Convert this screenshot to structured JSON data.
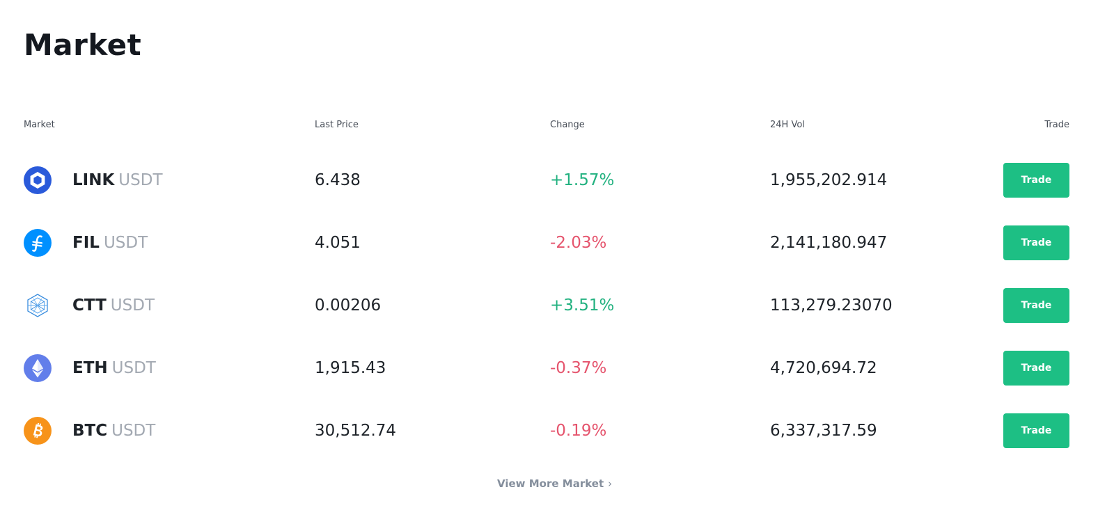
{
  "page": {
    "title": "Market"
  },
  "table": {
    "headers": {
      "market": "Market",
      "last_price": "Last Price",
      "change": "Change",
      "volume": "24H Vol",
      "trade": "Trade"
    },
    "rows": [
      {
        "base": "LINK",
        "quote": "USDT",
        "price": "6.438",
        "change": "+1.57%",
        "direction": "up",
        "volume": "1,955,202.914",
        "trade_label": "Trade",
        "icon": "chainlink-icon"
      },
      {
        "base": "FIL",
        "quote": "USDT",
        "price": "4.051",
        "change": "-2.03%",
        "direction": "down",
        "volume": "2,141,180.947",
        "trade_label": "Trade",
        "icon": "filecoin-icon"
      },
      {
        "base": "CTT",
        "quote": "USDT",
        "price": "0.00206",
        "change": "+3.51%",
        "direction": "up",
        "volume": "113,279.23070",
        "trade_label": "Trade",
        "icon": "ctt-icon"
      },
      {
        "base": "ETH",
        "quote": "USDT",
        "price": "1,915.43",
        "change": "-0.37%",
        "direction": "down",
        "volume": "4,720,694.72",
        "trade_label": "Trade",
        "icon": "ethereum-icon"
      },
      {
        "base": "BTC",
        "quote": "USDT",
        "price": "30,512.74",
        "change": "-0.19%",
        "direction": "down",
        "volume": "6,337,317.59",
        "trade_label": "Trade",
        "icon": "bitcoin-icon"
      }
    ]
  },
  "footer": {
    "view_more": "View More Market",
    "chevron_icon": "chevron-right-icon"
  },
  "colors": {
    "up": "#21b17f",
    "down": "#e5546d",
    "trade_button": "#1dbf84",
    "chainlink": "#2a5ada",
    "filecoin": "#0090ff",
    "ctt": "#3a8dde",
    "ethereum": "#627eea",
    "bitcoin": "#f7931a"
  }
}
